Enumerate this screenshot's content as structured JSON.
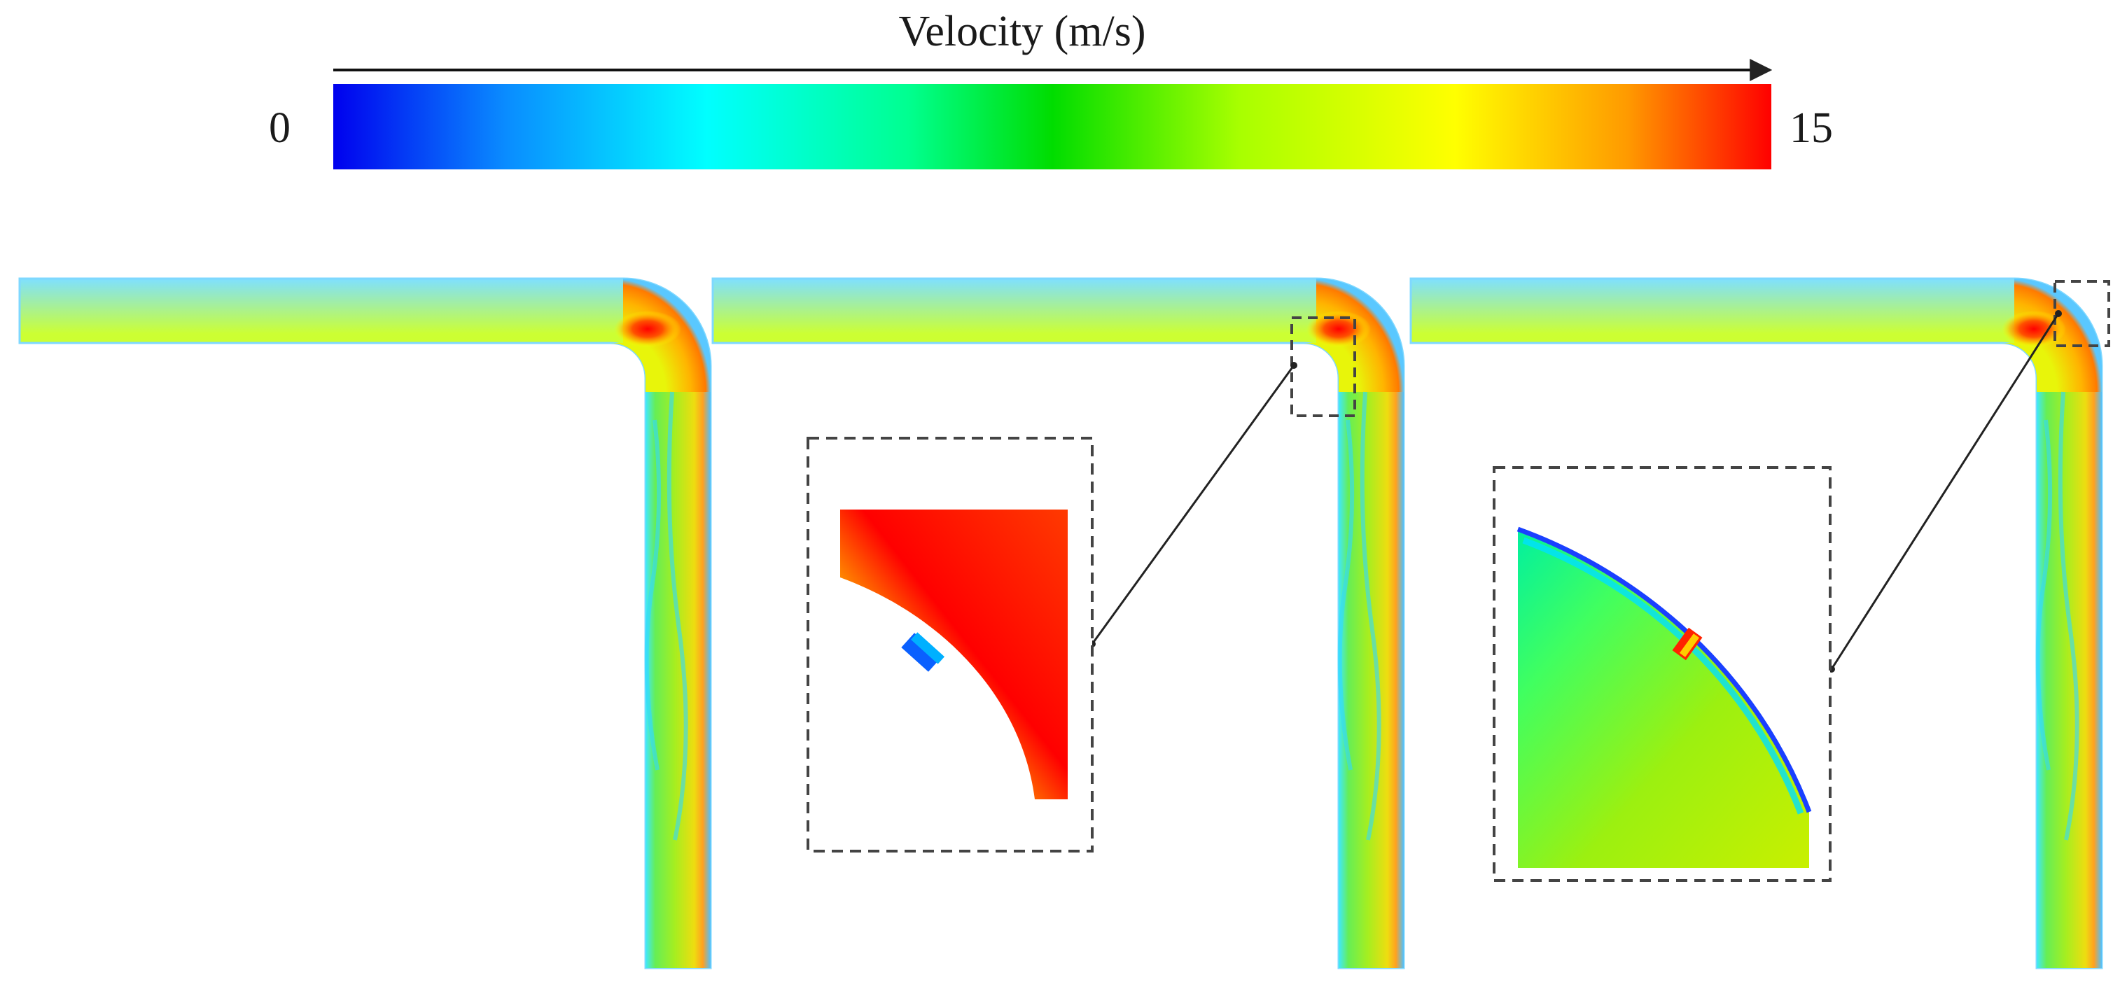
{
  "colorbar": {
    "title": "Velocity (m/s)",
    "min_label": "0",
    "max_label": "15",
    "min_value": 0,
    "max_value": 15,
    "colors": [
      "#0000ee",
      "#0aa0ff",
      "#00ffff",
      "#00ff90",
      "#00dd00",
      "#a8ff00",
      "#ffff00",
      "#ff9a00",
      "#ff0000"
    ]
  },
  "panels": [
    {
      "name": "pipe-bend-plain",
      "has_inset": false
    },
    {
      "name": "pipe-bend-inner-protrusion",
      "has_inset": true,
      "inset_name": "inset-protrusion-inner"
    },
    {
      "name": "pipe-bend-outer-protrusion",
      "has_inset": true,
      "inset_name": "inset-protrusion-outer"
    }
  ]
}
